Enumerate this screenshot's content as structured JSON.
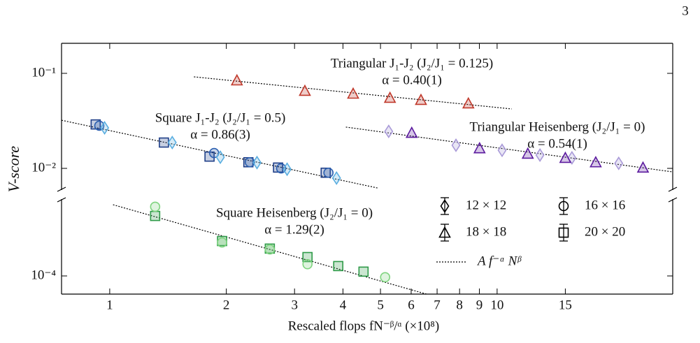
{
  "page_number": "3",
  "chart_data": {
    "type": "scatter",
    "log_x": true,
    "log_y": true,
    "xlabel": "Rescaled flops fN⁻ᵝ/ᵅ (×10⁸)",
    "ylabel": "V-score",
    "xlim": [
      0.751,
      28.4
    ],
    "xticks": [
      1,
      2,
      3,
      4,
      5,
      6,
      7,
      8,
      9,
      10,
      15
    ],
    "legend": [
      {
        "label": "12 × 12",
        "marker": "diamond"
      },
      {
        "label": "16 × 16",
        "marker": "circle"
      },
      {
        "label": "18 × 18",
        "marker": "triangle"
      },
      {
        "label": "20 × 20",
        "marker": "square"
      }
    ],
    "fit_label": "A f⁻ᵅ Nᵝ",
    "annotations": [
      "Triangular J₁-J₂ (J₂/J₁ = 0.125)",
      "α = 0.40(1)",
      "Square J₁-J₂ (J₂/J₁ = 0.5)",
      "α = 0.86(3)",
      "Triangular Heisenberg (J₂/J₁ = 0)",
      "α = 0.54(1)",
      "Square Heisenberg (J₂/J₁ = 0)",
      "α = 1.29(2)"
    ],
    "panels": [
      {
        "ylim": [
          0.00592,
          0.207
        ],
        "yticks": [
          {
            "value": 0.1,
            "label": "10⁻¹"
          },
          {
            "value": 0.01,
            "label": "10⁻²"
          }
        ],
        "series": [
          {
            "marker": "triangle",
            "color": "#c0392b",
            "x": [
              2.13,
              3.19,
              4.25,
              5.29,
              6.36,
              8.43
            ],
            "values": [
              0.0844,
              0.0655,
              0.0612,
              0.0553,
              0.0526,
              0.0483
            ]
          },
          {
            "marker": "square",
            "color": "#1f3f88",
            "x": [
              0.92,
              1.38,
              1.81,
              2.28,
              2.72,
              3.61
            ],
            "values": [
              0.029,
              0.0187,
              0.0133,
              0.0116,
              0.0102,
              0.009
            ]
          },
          {
            "marker": "circle",
            "color": "#2b5fb0",
            "x": [
              0.94,
              1.86,
              2.3,
              2.77,
              3.67
            ],
            "values": [
              0.0281,
              0.0145,
              0.0116,
              0.01,
              0.009
            ]
          },
          {
            "marker": "diamond",
            "color": "#5aaee0",
            "x": [
              0.97,
              1.45,
              1.93,
              2.4,
              2.87,
              3.85
            ],
            "values": [
              0.0267,
              0.0187,
              0.0131,
              0.0115,
              0.0098,
              0.0079
            ]
          },
          {
            "marker": "diamond",
            "color": "#a99ad8",
            "x": [
              5.25,
              7.83,
              10.3,
              12.9,
              15.6,
              20.6
            ],
            "values": [
              0.0245,
              0.0175,
              0.0155,
              0.0138,
              0.0129,
              0.0113
            ]
          },
          {
            "marker": "triangle",
            "color": "#5b1a9e",
            "x": [
              6.02,
              9.01,
              12.0,
              15.0,
              17.97,
              23.8
            ],
            "values": [
              0.0237,
              0.0163,
              0.0143,
              0.0129,
              0.0116,
              0.0102
            ]
          }
        ],
        "fits": [
          {
            "x": [
              1.65,
              10.9
            ],
            "values": [
              0.0919,
              0.0422
            ]
          },
          {
            "x": [
              0.751,
              4.91
            ],
            "values": [
              0.0321,
              0.00622
            ]
          },
          {
            "x": [
              4.07,
              28.4
            ],
            "values": [
              0.0272,
              0.00918
            ]
          }
        ]
      },
      {
        "ylim": [
          6.44e-05,
          0.000644
        ],
        "yticks": [
          {
            "value": 0.0001,
            "label": "10⁻⁴"
          }
        ],
        "series": [
          {
            "marker": "square",
            "color": "#2e9a48",
            "x": [
              1.31,
              1.95,
              2.59,
              3.24,
              3.89,
              4.52
            ],
            "values": [
              0.000428,
              0.000233,
              0.000194,
              0.000158,
              0.000127,
              0.000111
            ]
          },
          {
            "marker": "circle",
            "color": "#7fd47f",
            "x": [
              1.31,
              1.95,
              2.59,
              3.24,
              5.14
            ],
            "values": [
              0.000535,
              0.000225,
              0.00019,
              0.000133,
              9.7e-05
            ]
          }
        ],
        "fits": [
          {
            "x": [
              1.02,
              6.57
            ],
            "values": [
              0.000562,
              6.44e-05
            ]
          }
        ]
      }
    ]
  }
}
